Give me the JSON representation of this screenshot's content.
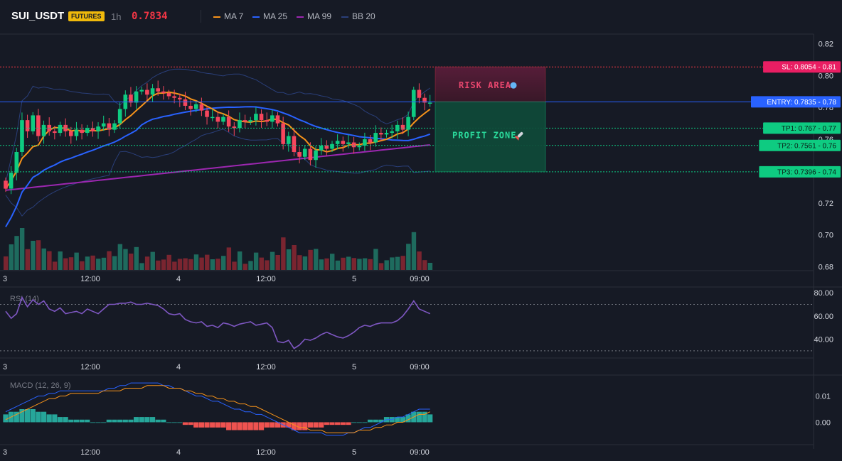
{
  "header": {
    "symbol": "SUI_USDT",
    "badge": "FUTURES",
    "timeframe": "1h",
    "price": "0.7834",
    "legend": [
      {
        "name": "MA 7",
        "color": "#f7931a"
      },
      {
        "name": "MA 25",
        "color": "#2962ff"
      },
      {
        "name": "MA 99",
        "color": "#9c27b0"
      },
      {
        "name": "BB 20",
        "color": "#2a3f7a"
      }
    ]
  },
  "colors": {
    "up": "#0ecb81",
    "down": "#f6465d",
    "up_vol": "#1e6b5e",
    "down_vol": "#7a2530",
    "rsi": "#7e57c2",
    "macd": "#2962ff",
    "signal": "#f7931a",
    "hist_up": "#26a69a",
    "hist_down": "#ef5350"
  },
  "chart_data": [
    {
      "type": "candlestick",
      "title": "SUI_USDT 1h",
      "x_ticks": [
        "3",
        "12:00",
        "4",
        "12:00",
        "5",
        "09:00"
      ],
      "y_ticks": [
        "0.82",
        "0.80",
        "0.78",
        "0.76",
        "0.74",
        "0.72",
        "0.70",
        "0.68"
      ],
      "ylim": [
        0.678,
        0.826
      ],
      "close": [
        0.729,
        0.739,
        0.752,
        0.772,
        0.765,
        0.775,
        0.762,
        0.769,
        0.765,
        0.764,
        0.769,
        0.765,
        0.762,
        0.766,
        0.764,
        0.767,
        0.765,
        0.768,
        0.77,
        0.766,
        0.77,
        0.779,
        0.788,
        0.783,
        0.79,
        0.791,
        0.788,
        0.792,
        0.79,
        0.789,
        0.787,
        0.786,
        0.785,
        0.781,
        0.779,
        0.782,
        0.778,
        0.774,
        0.774,
        0.771,
        0.774,
        0.768,
        0.767,
        0.772,
        0.771,
        0.772,
        0.776,
        0.772,
        0.771,
        0.775,
        0.77,
        0.757,
        0.762,
        0.752,
        0.749,
        0.754,
        0.747,
        0.753,
        0.756,
        0.754,
        0.757,
        0.759,
        0.757,
        0.758,
        0.755,
        0.756,
        0.76,
        0.758,
        0.764,
        0.763,
        0.764,
        0.765,
        0.769,
        0.766,
        0.774,
        0.791,
        0.786,
        0.783,
        0.783
      ],
      "rsi": {
        "label": "RSI (14)",
        "ylim": [
          25,
          85
        ],
        "y_ticks": [
          "80.00",
          "60.00",
          "40.00"
        ],
        "bands": [
          70,
          30
        ],
        "values": [
          64,
          58,
          62,
          76,
          68,
          74,
          70,
          73,
          66,
          64,
          67,
          62,
          63,
          64,
          62,
          66,
          64,
          62,
          66,
          70,
          70,
          71,
          71,
          72,
          70,
          70,
          71,
          70,
          69,
          66,
          62,
          61,
          62,
          57,
          55,
          54,
          55,
          51,
          52,
          50,
          54,
          53,
          51,
          53,
          54,
          55,
          52,
          53,
          54,
          50,
          38,
          37,
          39,
          32,
          35,
          40,
          39,
          41,
          44,
          46,
          44,
          42,
          41,
          43,
          46,
          50,
          52,
          51,
          53,
          54,
          54,
          54,
          56,
          60,
          66,
          73,
          66,
          64,
          62
        ]
      },
      "macd": {
        "label": "MACD (12, 26, 9)",
        "ylim": [
          -0.008,
          0.018
        ],
        "y_ticks": [
          "0.01",
          "0.00"
        ],
        "macd": [
          0.004,
          0.005,
          0.006,
          0.007,
          0.008,
          0.009,
          0.01,
          0.01,
          0.011,
          0.011,
          0.012,
          0.012,
          0.012,
          0.012,
          0.012,
          0.012,
          0.012,
          0.012,
          0.012,
          0.013,
          0.013,
          0.014,
          0.014,
          0.015,
          0.015,
          0.015,
          0.015,
          0.015,
          0.015,
          0.014,
          0.014,
          0.013,
          0.013,
          0.012,
          0.011,
          0.01,
          0.01,
          0.009,
          0.008,
          0.008,
          0.007,
          0.006,
          0.005,
          0.005,
          0.004,
          0.004,
          0.003,
          0.003,
          0.002,
          0.001,
          0.0,
          -0.001,
          -0.002,
          -0.003,
          -0.004,
          -0.004,
          -0.004,
          -0.004,
          -0.004,
          -0.005,
          -0.005,
          -0.005,
          -0.005,
          -0.004,
          -0.004,
          -0.003,
          -0.002,
          -0.002,
          -0.001,
          0.0,
          0.001,
          0.001,
          0.002,
          0.002,
          0.003,
          0.004,
          0.005,
          0.005,
          0.005
        ],
        "signal": [
          0.001,
          0.002,
          0.003,
          0.004,
          0.005,
          0.006,
          0.007,
          0.008,
          0.009,
          0.009,
          0.01,
          0.01,
          0.011,
          0.011,
          0.011,
          0.011,
          0.011,
          0.011,
          0.012,
          0.012,
          0.012,
          0.012,
          0.013,
          0.013,
          0.013,
          0.013,
          0.014,
          0.014,
          0.014,
          0.014,
          0.013,
          0.013,
          0.013,
          0.012,
          0.012,
          0.011,
          0.011,
          0.01,
          0.01,
          0.009,
          0.009,
          0.008,
          0.008,
          0.007,
          0.007,
          0.006,
          0.006,
          0.005,
          0.004,
          0.003,
          0.002,
          0.001,
          0.0,
          -0.001,
          -0.002,
          -0.002,
          -0.003,
          -0.003,
          -0.003,
          -0.004,
          -0.004,
          -0.004,
          -0.004,
          -0.004,
          -0.004,
          -0.003,
          -0.003,
          -0.003,
          -0.002,
          -0.002,
          -0.001,
          -0.001,
          0.0,
          0.0,
          0.001,
          0.002,
          0.003,
          0.003,
          0.004
        ],
        "hist": [
          0.003,
          0.004,
          0.004,
          0.005,
          0.005,
          0.005,
          0.004,
          0.004,
          0.003,
          0.003,
          0.002,
          0.002,
          0.001,
          0.001,
          0.001,
          0.001,
          0.0,
          0.0,
          0.0,
          0.001,
          0.001,
          0.001,
          0.001,
          0.001,
          0.002,
          0.002,
          0.002,
          0.002,
          0.001,
          0.001,
          0.0,
          0.0,
          0.0,
          -0.001,
          -0.001,
          -0.002,
          -0.002,
          -0.002,
          -0.002,
          -0.002,
          -0.002,
          -0.003,
          -0.003,
          -0.003,
          -0.003,
          -0.003,
          -0.003,
          -0.003,
          -0.002,
          -0.002,
          -0.002,
          -0.002,
          -0.002,
          -0.003,
          -0.003,
          -0.003,
          -0.002,
          -0.002,
          -0.002,
          -0.001,
          -0.001,
          -0.001,
          -0.001,
          -0.001,
          0.0,
          0.0,
          0.0,
          0.001,
          0.001,
          0.001,
          0.002,
          0.002,
          0.002,
          0.002,
          0.003,
          0.004,
          0.004,
          0.004,
          0.003
        ]
      }
    }
  ],
  "levels": {
    "sl": {
      "label": "SL: 0.8054 - 0.81",
      "value": 0.8054
    },
    "entry": {
      "label": "ENTRY: 0.7835 - 0.78",
      "value": 0.7835
    },
    "tp": [
      {
        "label": "TP1: 0.767 - 0.77",
        "value": 0.767
      },
      {
        "label": "TP2: 0.7561 - 0.76",
        "value": 0.7561
      },
      {
        "label": "TP3: 0.7396 - 0.74",
        "value": 0.7396
      }
    ]
  },
  "zones": {
    "risk": "RISK AREA",
    "profit": "PROFIT ZONE"
  }
}
